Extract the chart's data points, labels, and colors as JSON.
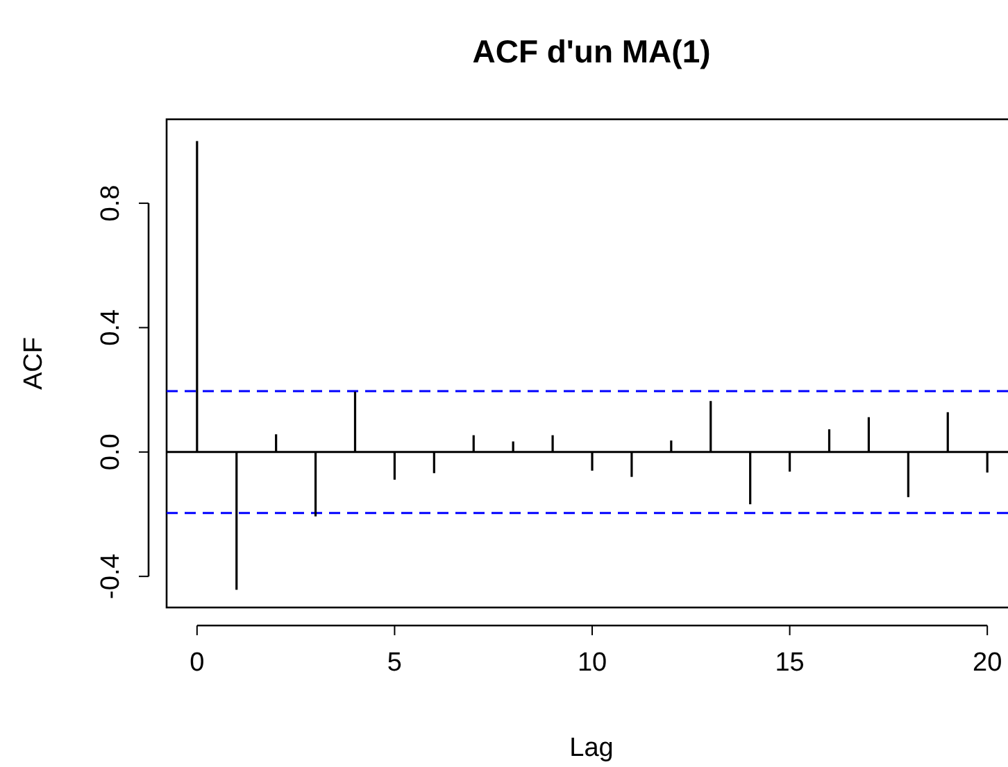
{
  "chart_data": {
    "type": "bar",
    "title": "ACF d'un MA(1)",
    "xlabel": "Lag",
    "ylabel": "ACF",
    "x": [
      0,
      1,
      2,
      3,
      4,
      5,
      6,
      7,
      8,
      9,
      10,
      11,
      12,
      13,
      14,
      15,
      16,
      17,
      18,
      19,
      20
    ],
    "series": [
      {
        "color": "#000000",
        "values": [
          1.0,
          -0.443,
          0.057,
          -0.207,
          0.194,
          -0.089,
          -0.068,
          0.054,
          0.034,
          0.054,
          -0.06,
          -0.08,
          0.037,
          0.164,
          -0.168,
          -0.063,
          0.073,
          0.112,
          -0.145,
          0.128,
          -0.066
        ]
      }
    ],
    "xlim": [
      -0.77,
      20.77
    ],
    "ylim": [
      -0.5,
      1.07
    ],
    "xticks": [
      0,
      5,
      10,
      15,
      20
    ],
    "yticks": [
      -0.4,
      {
        "value": 0,
        "label": "0.0"
      },
      0.4,
      0.8
    ],
    "ref_lines": [
      {
        "axis": "y",
        "value": 0,
        "color": "#000000",
        "line_style": "solid"
      },
      {
        "axis": "y",
        "value": 0.196,
        "color": "#0000ff",
        "line_style": "dashed"
      },
      {
        "axis": "y",
        "value": -0.196,
        "color": "#0000ff",
        "line_style": "dashed"
      }
    ],
    "grid": false
  }
}
